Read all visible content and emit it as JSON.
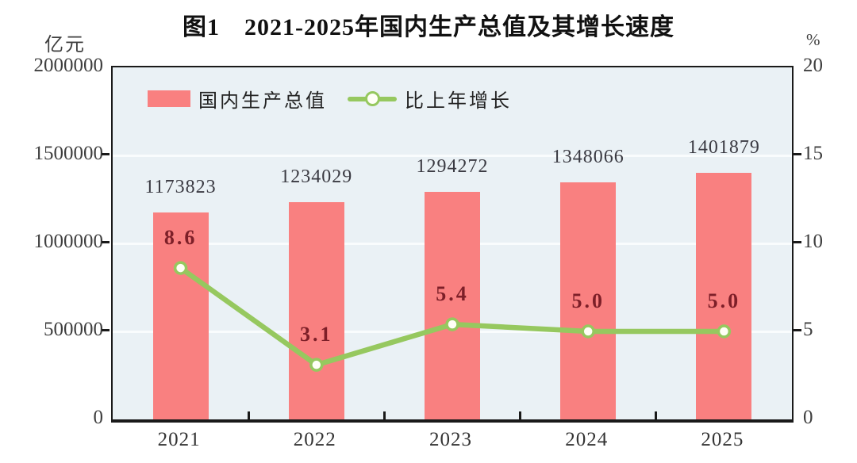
{
  "chart_data": {
    "type": "combo-bar-line",
    "title": "图1　2021-2025年国内生产总值及其增长速度",
    "categories": [
      "2021",
      "2022",
      "2023",
      "2024",
      "2025"
    ],
    "series": [
      {
        "name": "国内生产总值",
        "type": "bar",
        "axis": "left",
        "values": [
          1173823,
          1234029,
          1294272,
          1348066,
          1401879
        ],
        "labels": [
          "1173823",
          "1234029",
          "1294272",
          "1348066",
          "1401879"
        ]
      },
      {
        "name": "比上年增长",
        "type": "line",
        "axis": "right",
        "values": [
          8.6,
          3.1,
          5.4,
          5.0,
          5.0
        ],
        "labels": [
          "8.6",
          "3.1",
          "5.4",
          "5.0",
          "5.0"
        ]
      }
    ],
    "left_axis": {
      "unit": "亿元",
      "min": 0,
      "max": 2000000,
      "ticks": [
        0,
        500000,
        1000000,
        1500000,
        2000000
      ],
      "tick_labels": [
        "0",
        "500000",
        "1000000",
        "1500000",
        "2000000"
      ],
      "grid_ticks": [
        500000,
        1000000,
        1500000
      ]
    },
    "right_axis": {
      "unit": "%",
      "min": 0,
      "max": 20,
      "ticks": [
        0,
        5,
        10,
        15,
        20
      ],
      "tick_labels": [
        "0",
        "5",
        "10",
        "15",
        "20"
      ],
      "mark_ticks": [
        5,
        10,
        15
      ]
    },
    "legend_position": "top-left-inside",
    "grid": "horizontal"
  },
  "colors": {
    "bar": "#F98080",
    "line": "#96C85F",
    "marker_fill": "#FFFFF6",
    "plot_bg": "#EAF1F5",
    "gridline": "#F9FCFD",
    "bar_label": "#3A3A42",
    "line_label": "#7D1F28",
    "axis_text": "#3F3F3F",
    "border": "#1A1A1A"
  }
}
